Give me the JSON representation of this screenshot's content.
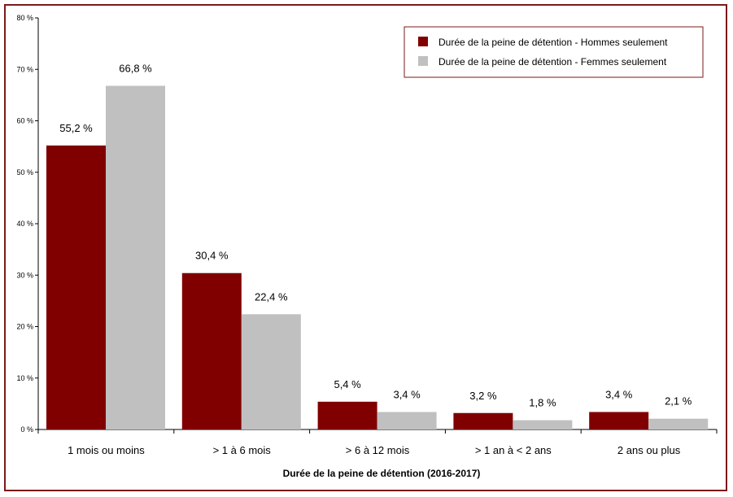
{
  "chart_data": {
    "type": "bar",
    "categories": [
      "1 mois ou moins",
      "> 1 à 6 mois",
      "> 6 à 12 mois",
      "> 1 an à < 2 ans",
      "2 ans ou plus"
    ],
    "series": [
      {
        "name": "Durée de la peine de détention - Hommes seulement",
        "values": [
          55.2,
          30.4,
          5.4,
          3.2,
          3.4
        ],
        "labels": [
          "55,2 %",
          "30,4 %",
          "5,4 %",
          "3,2 %",
          "3,4 %"
        ],
        "color": "#800000"
      },
      {
        "name": "Durée de la peine de détention - Femmes seulement",
        "values": [
          66.8,
          22.4,
          3.4,
          1.8,
          2.1
        ],
        "labels": [
          "66,8 %",
          "22,4 %",
          "3,4 %",
          "1,8 %",
          "2,1 %"
        ],
        "color": "#c0c0c0"
      }
    ],
    "xlabel": "Durée de la peine de détention  (2016-2017)",
    "ylabel": "",
    "ylim": [
      0,
      80
    ],
    "yticks": [
      0,
      10,
      20,
      30,
      40,
      50,
      60,
      70,
      80
    ],
    "ytick_labels": [
      "0 %",
      "10 %",
      "20 %",
      "30 %",
      "40 %",
      "50 %",
      "60 %",
      "70 %",
      "80 %"
    ],
    "grid": false,
    "legend_position": "top-right",
    "frame_color": "#7b1a1a"
  }
}
